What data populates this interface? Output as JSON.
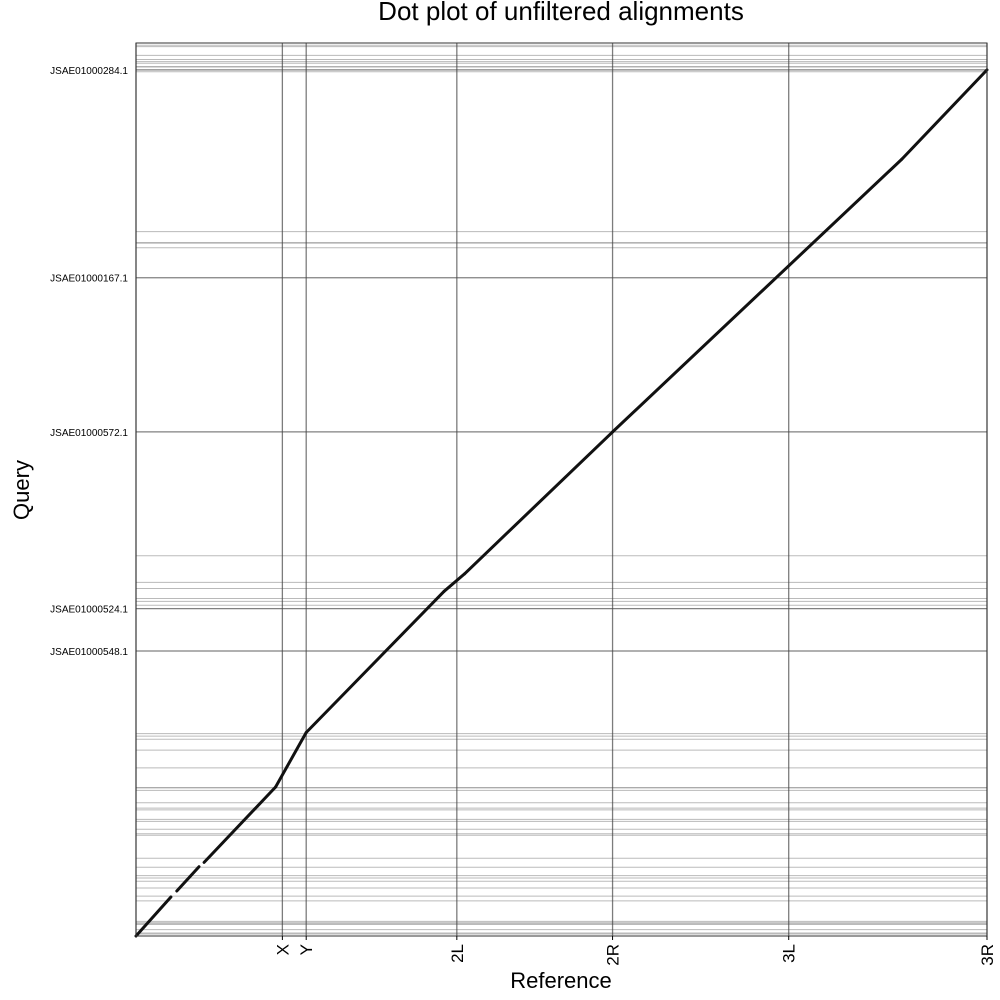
{
  "chart_data": {
    "type": "scatter",
    "title": "Dot plot of unfiltered alignments",
    "xlabel": "Reference",
    "ylabel": "Query",
    "x_tick_labels": [
      "X",
      "Y",
      "2L",
      "2R",
      "3L",
      "3R"
    ],
    "x_boundaries": [
      0,
      0.172,
      0.2,
      0.377,
      0.56,
      0.767,
      1.0
    ],
    "y_tick_labels": [
      "JSAE01000548.1",
      "JSAE01000524.1",
      "JSAE01000572.1",
      "JSAE01000167.1",
      "JSAE01000284.1"
    ],
    "y_tick_positions": [
      0.329,
      0.378,
      0.582,
      0.76,
      1.0
    ],
    "xlim": [
      0,
      1
    ],
    "ylim": [
      0,
      1.031
    ],
    "grid": true,
    "segments": [
      {
        "x": [
          0.0,
          0.041
        ],
        "y": [
          0.0,
          0.045
        ]
      },
      {
        "x": [
          0.048,
          0.074
        ],
        "y": [
          0.052,
          0.08
        ]
      },
      {
        "x": [
          0.08,
          0.164
        ],
        "y": [
          0.085,
          0.172
        ]
      },
      {
        "x": [
          0.164,
          0.2
        ],
        "y": [
          0.172,
          0.235
        ]
      },
      {
        "x": [
          0.2,
          0.362
        ],
        "y": [
          0.235,
          0.398
        ]
      },
      {
        "x": [
          0.362,
          0.386
        ],
        "y": [
          0.398,
          0.418
        ]
      },
      {
        "x": [
          0.386,
          0.56
        ],
        "y": [
          0.418,
          0.582
        ]
      },
      {
        "x": [
          0.56,
          0.9
        ],
        "y": [
          0.582,
          0.897
        ]
      },
      {
        "x": [
          0.9,
          1.0
        ],
        "y": [
          0.897,
          1.0
        ]
      }
    ]
  }
}
